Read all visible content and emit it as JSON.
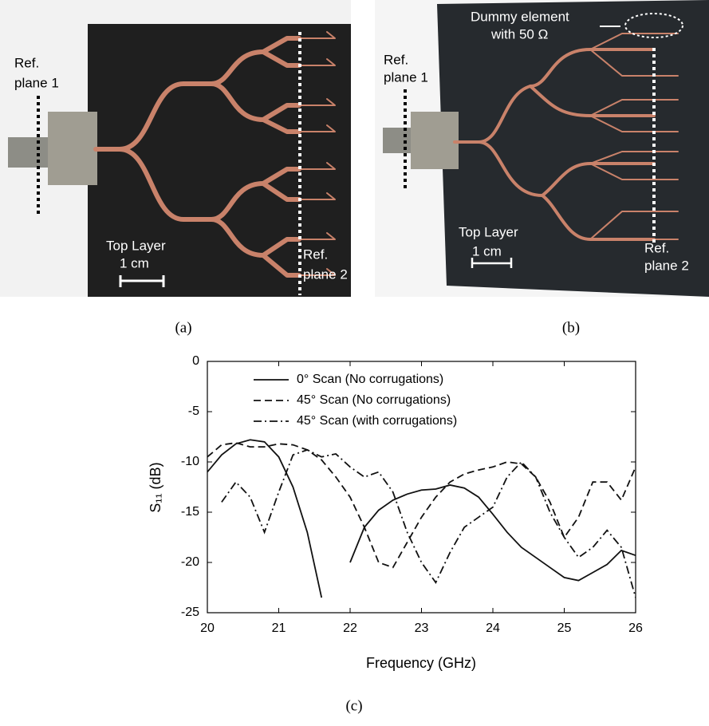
{
  "panels": [
    {
      "caption": "(a)",
      "annotations": [
        [
          "Ref.",
          "plane 1"
        ],
        [
          "Top Layer"
        ],
        [
          "1 cm"
        ],
        [
          "Ref.",
          "plane 2"
        ]
      ]
    },
    {
      "caption": "(b)",
      "annotations": [
        [
          "Dummy element",
          "with 50 Ω"
        ],
        [
          "Ref.",
          "plane 1"
        ],
        [
          "Top Layer"
        ],
        [
          "1 cm"
        ],
        [
          "Ref.",
          "plane 2"
        ]
      ]
    }
  ],
  "chart_data": {
    "type": "line",
    "caption": "(c)",
    "x_label": "Frequency (GHz)",
    "y_label": "S₁₁ (dB)",
    "x": [
      20,
      20.2,
      20.4,
      20.6,
      20.8,
      21,
      21.2,
      21.4,
      21.6,
      21.8,
      22,
      22.2,
      22.4,
      22.6,
      22.8,
      23,
      23.2,
      23.4,
      23.6,
      23.8,
      24,
      24.2,
      24.4,
      24.6,
      24.8,
      25,
      25.2,
      25.4,
      25.6,
      25.8,
      26
    ],
    "series": [
      {
        "name": "0° Scan (No corrugations)",
        "color": "#111111",
        "dash": "solid",
        "values": [
          -11,
          -9.3,
          -8.2,
          -7.8,
          -8.0,
          -9.5,
          -12.5,
          -17,
          -23.5,
          null,
          -20,
          -16.5,
          -14.8,
          -13.8,
          -13.2,
          -12.8,
          -12.7,
          -12.3,
          -12.6,
          -13.5,
          -15.2,
          -17,
          -18.5,
          -19.5,
          -20.5,
          -21.5,
          -21.8,
          -21,
          -20.2,
          -18.8,
          -19.3
        ]
      },
      {
        "name": "45° Scan (No corrugations)",
        "color": "#111111",
        "dash": "dashed",
        "values": [
          -9.5,
          -8.3,
          -8.1,
          -8.5,
          -8.5,
          -8.2,
          -8.3,
          -8.8,
          -9.8,
          -11.5,
          -13.5,
          -16.5,
          -20,
          -20.5,
          -18,
          -15.5,
          -13.5,
          -12,
          -11.2,
          -10.8,
          -10.5,
          -10,
          -10.2,
          -11.5,
          -14,
          -17.5,
          -15.5,
          -12,
          -12,
          -13.8,
          -10.5
        ]
      },
      {
        "name": "45° Scan (with corrugations)",
        "color": "#111111",
        "dash": "dashdot",
        "values": [
          null,
          -14,
          -12,
          -13.5,
          -17,
          -13,
          -9.3,
          -8.8,
          -9.5,
          -9.2,
          -10.5,
          -11.5,
          -11,
          -13,
          -17,
          -20,
          -22,
          -19,
          -16.5,
          -15.5,
          -14.5,
          -11.5,
          -10,
          -11.5,
          -15,
          -17.5,
          -19.5,
          -18.5,
          -16.8,
          -18.5,
          -23.5
        ]
      }
    ],
    "xlim": [
      20,
      26
    ],
    "xticks": [
      20,
      21,
      22,
      23,
      24,
      25,
      26
    ],
    "ylim": [
      -25,
      0
    ],
    "yticks": [
      0,
      -5,
      -10,
      -15,
      -20,
      -25
    ]
  }
}
